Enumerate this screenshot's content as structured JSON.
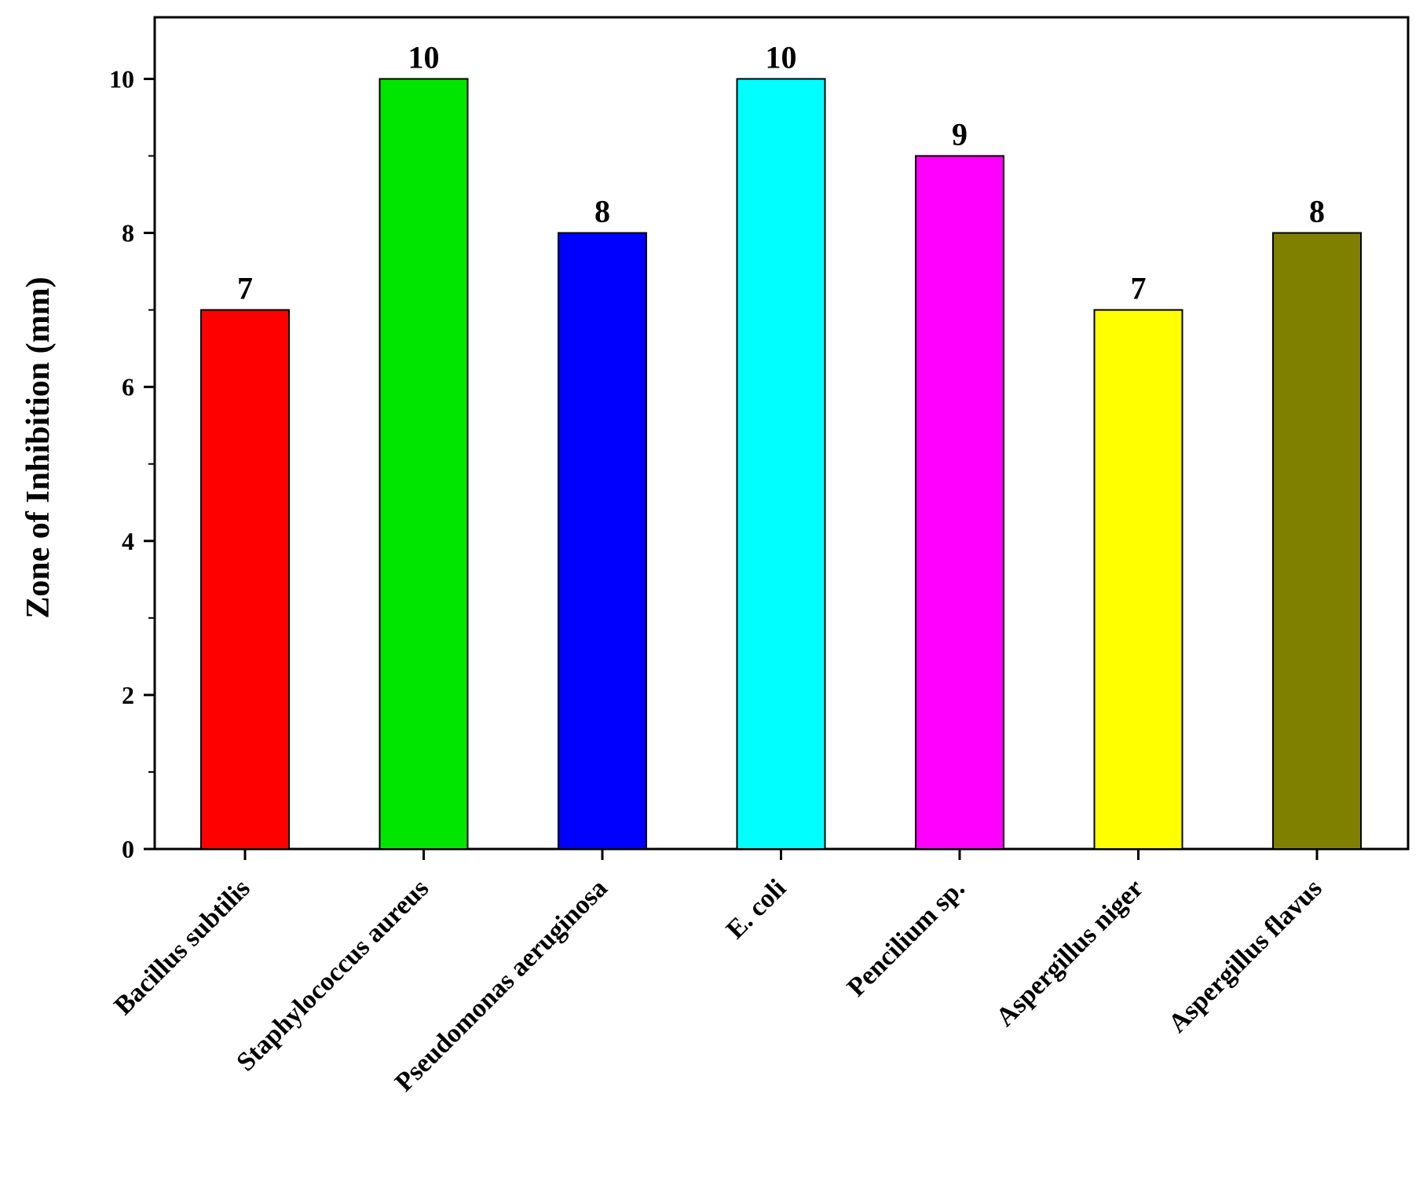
{
  "chart_data": {
    "type": "bar",
    "title": "",
    "xlabel": "",
    "ylabel": "Zone of Inhibition (mm)",
    "ylim": [
      0,
      10.8
    ],
    "yticks": [
      0,
      2,
      4,
      6,
      8,
      10
    ],
    "grid": false,
    "categories": [
      "Bacillus subtilis",
      "Staphylococcus aureus",
      "Pseudomonas aeruginosa",
      "E. coli",
      "Pencilium sp.",
      "Aspergillus niger",
      "Aspergillus flavus"
    ],
    "values": [
      7,
      10,
      8,
      10,
      9,
      7,
      8
    ],
    "data_labels": [
      "7",
      "10",
      "8",
      "10",
      "9",
      "7",
      "8"
    ],
    "colors": [
      "#ff0000",
      "#00e600",
      "#0000ff",
      "#00ffff",
      "#ff00ff",
      "#ffff00",
      "#808000"
    ]
  }
}
